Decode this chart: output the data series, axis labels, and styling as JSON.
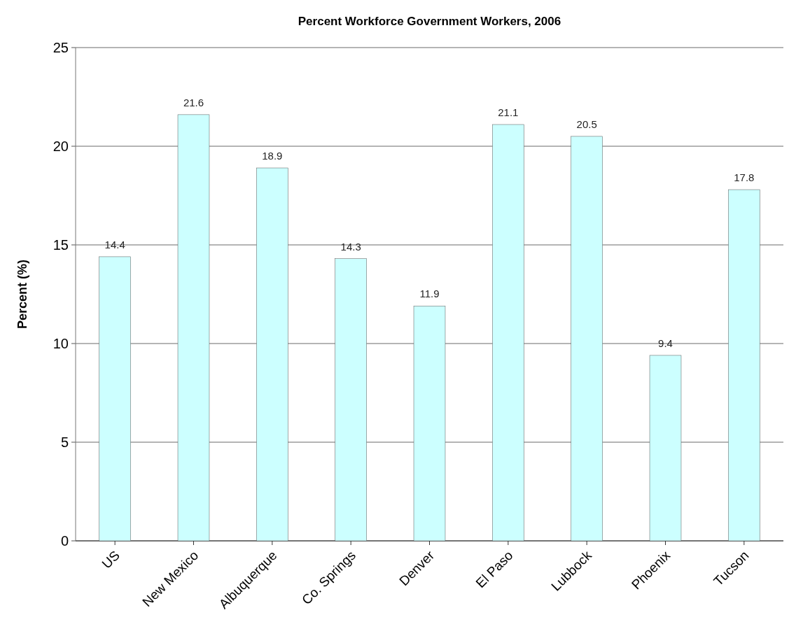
{
  "chart_data": {
    "type": "bar",
    "title": "Percent Workforce Government Workers, 2006",
    "ylabel": "Percent (%)",
    "categories": [
      "US",
      "New Mexico",
      "Albuquerque",
      "Co. Springs",
      "Denver",
      "El Paso",
      "Lubbock",
      "Phoenix",
      "Tucson"
    ],
    "values": [
      14.4,
      21.6,
      18.9,
      14.3,
      11.9,
      21.1,
      20.5,
      9.4,
      17.8
    ],
    "color": "#ccffff",
    "ylim": [
      0,
      25
    ],
    "yticks": [
      0,
      5,
      10,
      15,
      20,
      25
    ],
    "grid": "y",
    "data_labels": true
  }
}
